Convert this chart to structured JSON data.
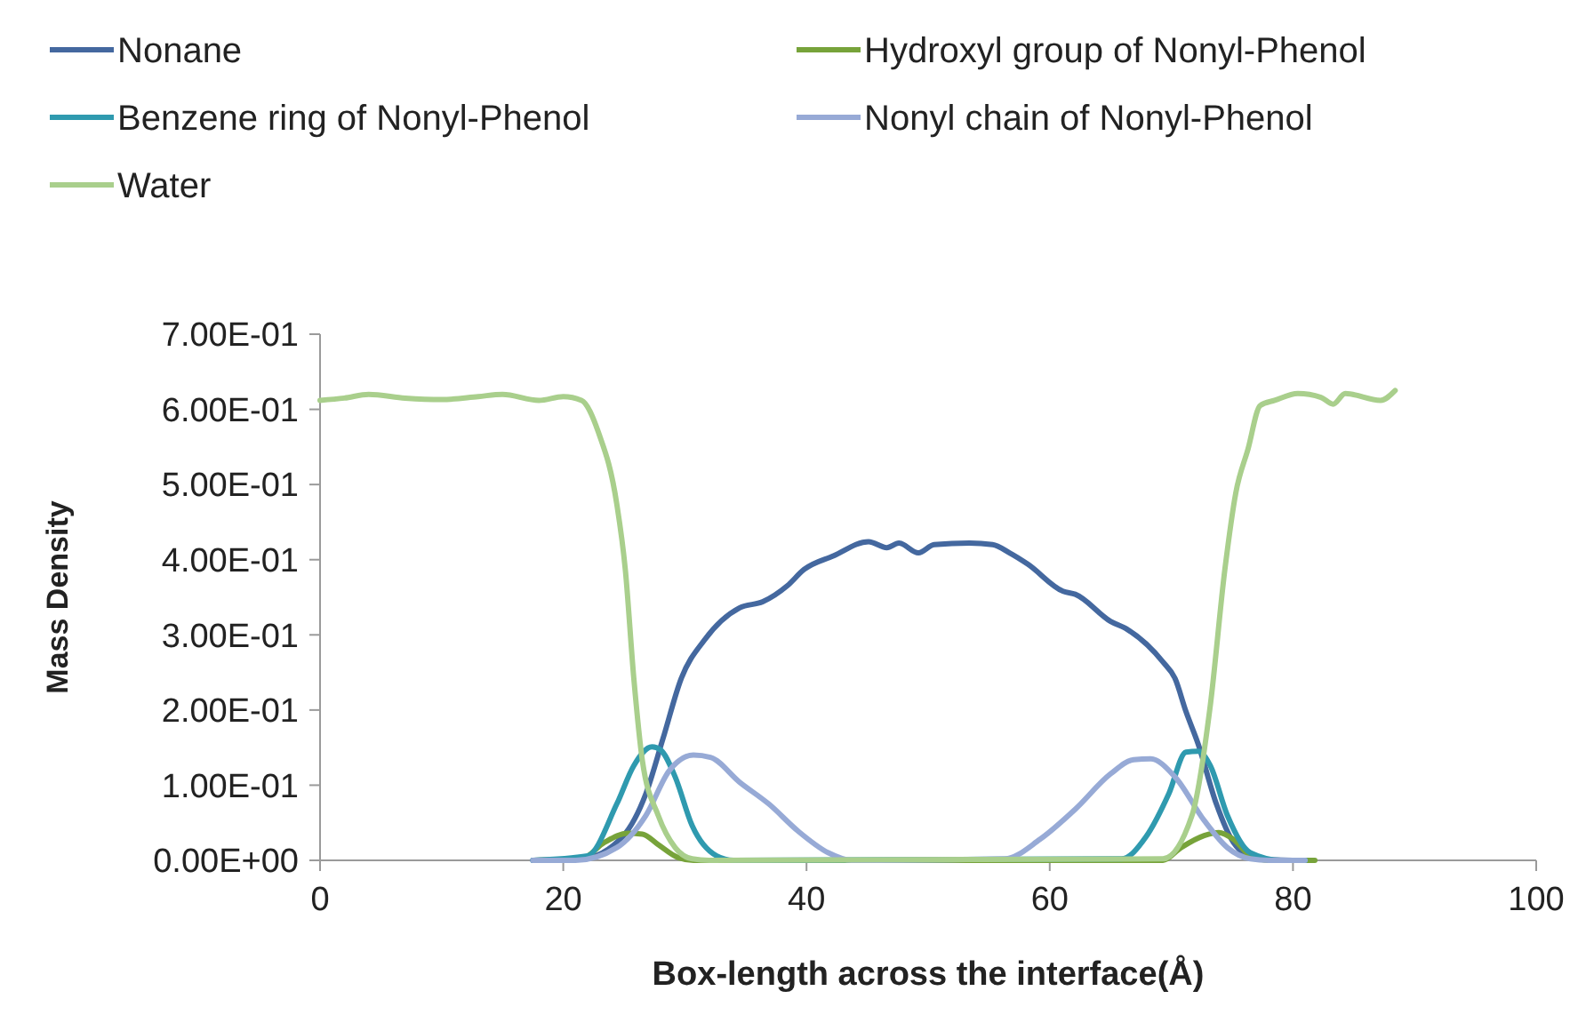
{
  "chart_data": {
    "type": "line",
    "xlabel": "Box-length across the interface(Å)",
    "ylabel": "Mass Density",
    "xlim": [
      0,
      100
    ],
    "xticks": [
      0,
      20,
      40,
      60,
      80,
      100
    ],
    "ylim": [
      0,
      0.7
    ],
    "yticks": [
      {
        "value": 0,
        "label": "0.00E+00"
      },
      {
        "value": 0.1,
        "label": "1.00E-01"
      },
      {
        "value": 0.2,
        "label": "2.00E-01"
      },
      {
        "value": 0.3,
        "label": "3.00E-01"
      },
      {
        "value": 0.4,
        "label": "4.00E-01"
      },
      {
        "value": 0.5,
        "label": "5.00E-01"
      },
      {
        "value": 0.6,
        "label": "6.00E-01"
      },
      {
        "value": 0.7,
        "label": "7.00E-01"
      }
    ],
    "grid": false,
    "legend": "top",
    "marker": "none",
    "line_style": "solid",
    "series": [
      {
        "name": "Nonane",
        "color": "#44689f",
        "x": [
          17.5,
          21.5,
          24.9,
          26.8,
          28.2,
          29.7,
          31.6,
          34.5,
          36.4,
          38.4,
          39.8,
          42.2,
          45.1,
          46.6,
          47.6,
          49.2,
          50.5,
          53.4,
          55.3,
          56.7,
          58.2,
          61.1,
          62.1,
          65.0,
          66.4,
          69.3,
          70.3,
          71.2,
          72.2,
          73.7,
          75.1,
          77.0,
          80,
          81.5
        ],
        "values": [
          0,
          0.002,
          0.032,
          0.089,
          0.162,
          0.242,
          0.293,
          0.336,
          0.344,
          0.365,
          0.387,
          0.405,
          0.424,
          0.416,
          0.422,
          0.409,
          0.42,
          0.422,
          0.42,
          0.409,
          0.394,
          0.358,
          0.354,
          0.318,
          0.307,
          0.264,
          0.242,
          0.198,
          0.155,
          0.075,
          0.024,
          0.002,
          0,
          0
        ]
      },
      {
        "name": "Hydroxyl group of Nonyl-Phenol",
        "color": "#77a33a",
        "x": [
          17.6,
          21.5,
          23.4,
          25.3,
          26.5,
          27.8,
          29.4,
          30.7,
          69.3,
          70.8,
          72.7,
          73.9,
          75.1,
          76.5,
          78,
          81.8
        ],
        "values": [
          0,
          0.002,
          0.024,
          0.036,
          0.035,
          0.021,
          0.004,
          0,
          0,
          0.017,
          0.033,
          0.037,
          0.028,
          0.006,
          0,
          0
        ]
      },
      {
        "name": "Benzene ring of Nonyl-Phenol",
        "color": "#2f9aaf",
        "x": [
          17.5,
          22.0,
          24.4,
          25.8,
          27.3,
          28.0,
          29.2,
          30.6,
          32.6,
          34.0,
          65.9,
          67.9,
          69.8,
          71.2,
          72.2,
          73.2,
          74.6,
          76.5,
          79,
          81
        ],
        "values": [
          0,
          0.006,
          0.075,
          0.126,
          0.151,
          0.147,
          0.111,
          0.046,
          0.006,
          0,
          0.002,
          0.031,
          0.089,
          0.144,
          0.145,
          0.126,
          0.06,
          0.01,
          0,
          0
        ]
      },
      {
        "name": "Nonyl chain of Nonyl-Phenol",
        "color": "#97aad6",
        "x": [
          17.5,
          21,
          24.4,
          26.8,
          28.7,
          30.7,
          32.1,
          34.5,
          36.9,
          39.3,
          41.8,
          43.7,
          56.3,
          59.2,
          62.1,
          65.0,
          66.9,
          68.3,
          70.3,
          72.7,
          74.6,
          76.5,
          78,
          81
        ],
        "values": [
          0,
          0,
          0.017,
          0.06,
          0.119,
          0.14,
          0.137,
          0.104,
          0.075,
          0.039,
          0.01,
          0,
          0.002,
          0.028,
          0.068,
          0.115,
          0.134,
          0.135,
          0.111,
          0.053,
          0.017,
          0.002,
          0,
          0
        ]
      },
      {
        "name": "Water",
        "color": "#a9cf8c",
        "x": [
          0,
          2,
          4,
          7,
          10,
          13,
          15,
          18,
          20,
          21.5,
          22.9,
          24.4,
          25.1,
          25.8,
          26.5,
          27.8,
          29.2,
          30.6,
          32,
          69.3,
          71.7,
          73.2,
          74.4,
          75.3,
          76.3,
          77.3,
          78.5,
          80.4,
          82.3,
          83.3,
          84.3,
          87.2,
          88.4
        ],
        "values": [
          0.612,
          0.615,
          0.62,
          0.615,
          0.613,
          0.617,
          0.62,
          0.612,
          0.617,
          0.612,
          0.569,
          0.474,
          0.387,
          0.242,
          0.133,
          0.06,
          0.017,
          0.002,
          0,
          0.002,
          0.06,
          0.206,
          0.387,
          0.489,
          0.547,
          0.605,
          0.612,
          0.621,
          0.616,
          0.607,
          0.621,
          0.612,
          0.625
        ]
      }
    ]
  }
}
